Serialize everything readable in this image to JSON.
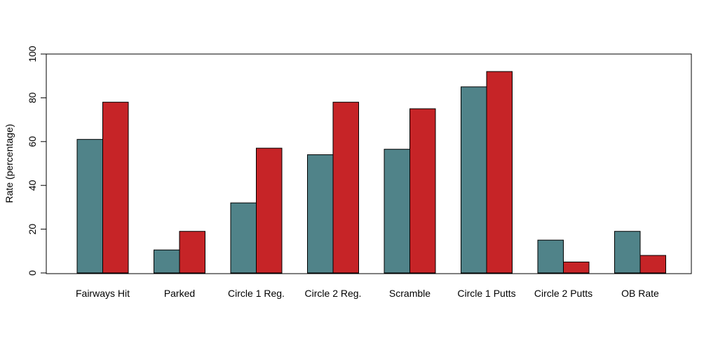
{
  "chart_data": {
    "type": "bar",
    "title": "",
    "xlabel": "",
    "ylabel": "Rate (percentage)",
    "categories": [
      "Fairways Hit",
      "Parked",
      "Circle 1 Reg.",
      "Circle 2 Reg.",
      "Scramble",
      "Circle 1 Putts",
      "Circle 2 Putts",
      "OB Rate"
    ],
    "series": [
      {
        "color": "#508389",
        "values": [
          61,
          10.5,
          32,
          54,
          56.5,
          85,
          15,
          19
        ]
      },
      {
        "color": "#c62427",
        "values": [
          78,
          19,
          57,
          78,
          75,
          92,
          5,
          8
        ]
      }
    ],
    "ylim": [
      0,
      100
    ],
    "yticks": [
      "0",
      "20",
      "40",
      "60",
      "80",
      "100"
    ],
    "grid": false,
    "legend": "none"
  }
}
